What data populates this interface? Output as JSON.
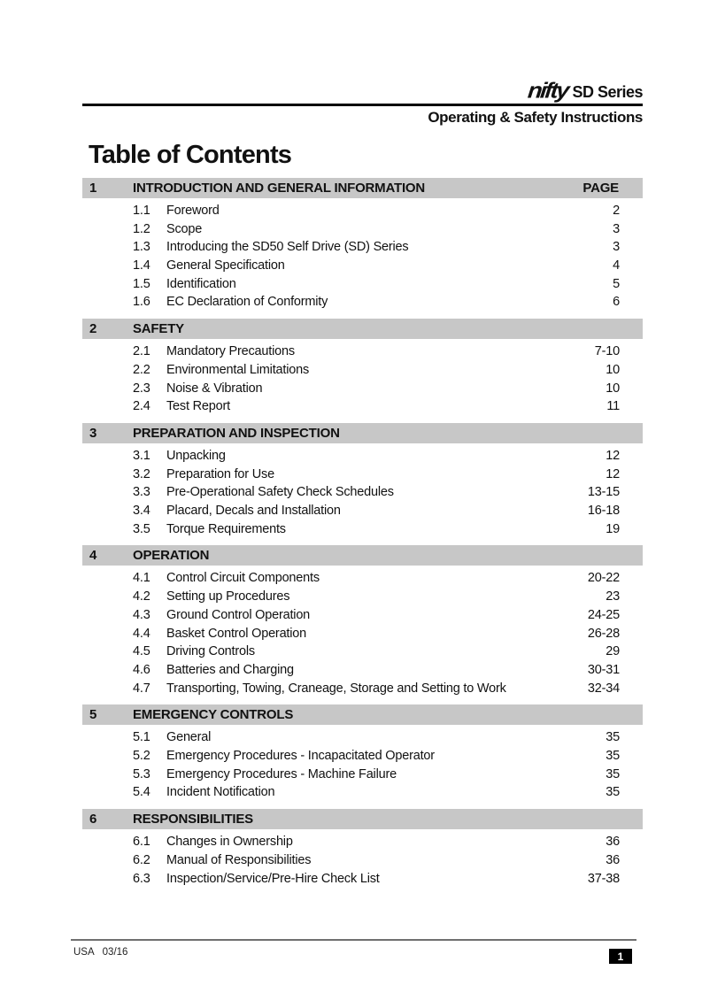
{
  "header": {
    "logo": "nifty",
    "series": "SD Series",
    "subtitle": "Operating & Safety Instructions"
  },
  "title": "Table of Contents",
  "page_label": "PAGE",
  "sections": [
    {
      "num": "1",
      "title": "INTRODUCTION AND GENERAL INFORMATION",
      "items": [
        {
          "num": "1.1",
          "label": "Foreword",
          "page": "2"
        },
        {
          "num": "1.2",
          "label": "Scope",
          "page": "3"
        },
        {
          "num": "1.3",
          "label": "Introducing the SD50 Self Drive (SD) Series",
          "page": "3"
        },
        {
          "num": "1.4",
          "label": "General Specification",
          "page": "4"
        },
        {
          "num": "1.5",
          "label": "Identification",
          "page": "5"
        },
        {
          "num": "1.6",
          "label": "EC Declaration of Conformity",
          "page": "6"
        }
      ]
    },
    {
      "num": "2",
      "title": "SAFETY",
      "items": [
        {
          "num": "2.1",
          "label": "Mandatory Precautions",
          "page": "7-10"
        },
        {
          "num": "2.2",
          "label": "Environmental Limitations",
          "page": "10"
        },
        {
          "num": "2.3",
          "label": "Noise & Vibration",
          "page": "10"
        },
        {
          "num": "2.4",
          "label": "Test Report",
          "page": "11"
        }
      ]
    },
    {
      "num": "3",
      "title": "PREPARATION AND INSPECTION",
      "items": [
        {
          "num": "3.1",
          "label": "Unpacking",
          "page": "12"
        },
        {
          "num": "3.2",
          "label": "Preparation for Use",
          "page": "12"
        },
        {
          "num": "3.3",
          "label": "Pre-Operational Safety Check Schedules",
          "page": "13-15"
        },
        {
          "num": "3.4",
          "label": "Placard, Decals and Installation",
          "page": "16-18"
        },
        {
          "num": "3.5",
          "label": "Torque Requirements",
          "page": "19"
        }
      ]
    },
    {
      "num": "4",
      "title": "OPERATION",
      "items": [
        {
          "num": "4.1",
          "label": "Control Circuit Components",
          "page": "20-22"
        },
        {
          "num": "4.2",
          "label": "Setting up Procedures",
          "page": "23"
        },
        {
          "num": "4.3",
          "label": "Ground Control Operation",
          "page": "24-25"
        },
        {
          "num": "4.4",
          "label": "Basket Control Operation",
          "page": "26-28"
        },
        {
          "num": "4.5",
          "label": "Driving Controls",
          "page": "29"
        },
        {
          "num": "4.6",
          "label": "Batteries and Charging",
          "page": "30-31"
        },
        {
          "num": "4.7",
          "label": "Transporting, Towing, Craneage, Storage and Setting to Work",
          "page": "32-34"
        }
      ]
    },
    {
      "num": "5",
      "title": "EMERGENCY CONTROLS",
      "items": [
        {
          "num": "5.1",
          "label": "General",
          "page": "35"
        },
        {
          "num": "5.2",
          "label": "Emergency Procedures - Incapacitated Operator",
          "page": "35"
        },
        {
          "num": "5.3",
          "label": "Emergency Procedures - Machine Failure",
          "page": "35"
        },
        {
          "num": "5.4",
          "label": "Incident Notification",
          "page": "35"
        }
      ]
    },
    {
      "num": "6",
      "title": "RESPONSIBILITIES",
      "items": [
        {
          "num": "6.1",
          "label": "Changes in Ownership",
          "page": "36"
        },
        {
          "num": "6.2",
          "label": "Manual of Responsibilities",
          "page": "36"
        },
        {
          "num": "6.3",
          "label": "Inspection/Service/Pre-Hire Check List",
          "page": "37-38"
        }
      ]
    }
  ],
  "footer": {
    "region": "USA",
    "date": "03/16",
    "page_number": "1"
  },
  "colors": {
    "section_bar_gray": "#c7c7c7",
    "footer_line_gray": "#707070",
    "page_badge_bg": "#000000",
    "page_badge_text": "#ffffff",
    "text": "#111111"
  }
}
